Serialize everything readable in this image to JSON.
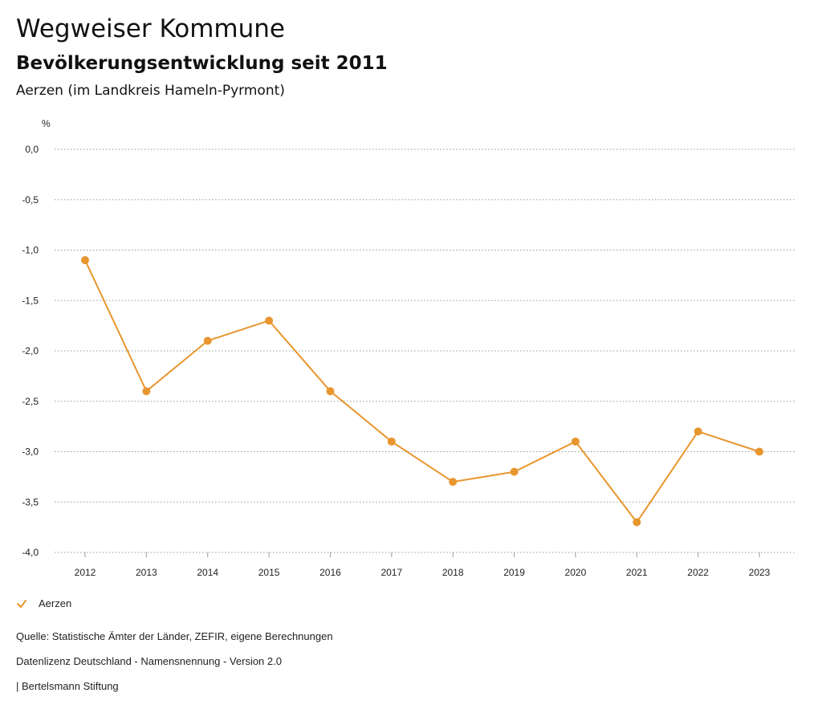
{
  "header": {
    "title": "Wegweiser Kommune",
    "subtitle": "Bevölkerungsentwicklung seit 2011",
    "region": "Aerzen (im Landkreis Hameln-Pyrmont)"
  },
  "chart_data": {
    "type": "line",
    "ylabel": "%",
    "x": [
      "2012",
      "2013",
      "2014",
      "2015",
      "2016",
      "2017",
      "2018",
      "2019",
      "2020",
      "2021",
      "2022",
      "2023"
    ],
    "series": [
      {
        "name": "Aerzen",
        "color": "#e8962e",
        "values": [
          -1.1,
          -2.4,
          -1.9,
          -1.7,
          -2.4,
          -2.9,
          -3.3,
          -3.2,
          -2.9,
          -3.7,
          -2.8,
          -3.0
        ]
      }
    ],
    "ylim": [
      -4.0,
      0.0
    ],
    "yticks": [
      "0,0",
      "-0,5",
      "-1,0",
      "-1,5",
      "-2,0",
      "-2,5",
      "-3,0",
      "-3,5",
      "-4,0"
    ],
    "ytick_values": [
      0.0,
      -0.5,
      -1.0,
      -1.5,
      -2.0,
      -2.5,
      -3.0,
      -3.5,
      -4.0
    ],
    "grid": true,
    "legend_placement": "bottom-left"
  },
  "legend": {
    "label": "Aerzen",
    "icon": "check-icon"
  },
  "footer": {
    "source": "Quelle: Statistische Ämter der Länder, ZEFIR, eigene Berechnungen",
    "license": "Datenlizenz Deutschland - Namensnennung - Version 2.0",
    "brand": "| Bertelsmann Stiftung"
  }
}
